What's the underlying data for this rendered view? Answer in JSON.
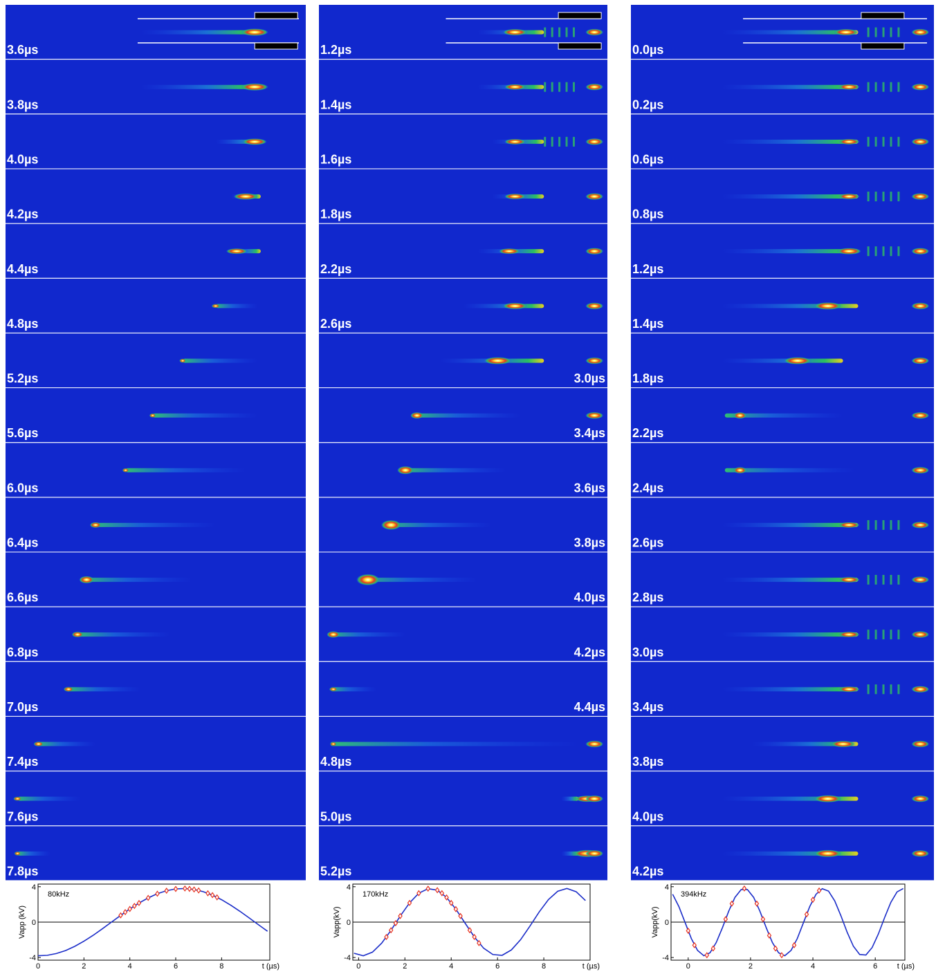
{
  "panels": [
    {
      "frames": [
        "3.6µs",
        "3.8µs",
        "4.0µs",
        "4.2µs",
        "4.4µs",
        "4.8µs",
        "5.2µs",
        "5.6µs",
        "6.0µs",
        "6.4µs",
        "6.6µs",
        "6.8µs",
        "7.0µs",
        "7.4µs",
        "7.6µs",
        "7.8µs"
      ]
    },
    {
      "frames": [
        "1.2µs",
        "1.4µs",
        "1.6µs",
        "1.8µs",
        "2.2µs",
        "2.6µs",
        "3.0µs",
        "3.4µs",
        "3.6µs",
        "3.8µs",
        "4.0µs",
        "4.2µs",
        "4.4µs",
        "4.8µs",
        "5.0µs",
        "5.2µs"
      ]
    },
    {
      "frames": [
        "0.0µs",
        "0.2µs",
        "0.6µs",
        "0.8µs",
        "1.2µs",
        "1.4µs",
        "1.8µs",
        "2.2µs",
        "2.4µs",
        "2.6µs",
        "2.8µs",
        "3.0µs",
        "3.4µs",
        "3.8µs",
        "4.0µs",
        "4.2µs"
      ]
    }
  ],
  "chart_data": [
    {
      "type": "line",
      "annotation": "80kHz",
      "x_label": "t (µs)",
      "y_label": "Vapp (kV)",
      "xlim": [
        0,
        10.1
      ],
      "xticks": [
        0,
        2,
        4,
        6,
        8
      ],
      "ylim": [
        -4.3,
        4.3
      ],
      "yticks": [
        -4,
        0,
        4
      ],
      "series": [
        {
          "color": "#1a2cc8",
          "x": [
            0,
            0.4,
            0.8,
            1.2,
            1.6,
            2.0,
            2.4,
            2.8,
            3.2,
            3.6,
            4.0,
            4.4,
            4.8,
            5.2,
            5.6,
            6.0,
            6.4,
            6.8,
            7.2,
            7.6,
            8.0,
            8.4,
            8.8,
            9.2,
            9.6,
            10.0
          ],
          "values": [
            -3.8,
            -3.75,
            -3.55,
            -3.21,
            -2.74,
            -2.16,
            -1.49,
            -0.76,
            0,
            0.76,
            1.49,
            2.16,
            2.74,
            3.21,
            3.55,
            3.75,
            3.8,
            3.69,
            3.44,
            3.05,
            2.53,
            1.91,
            1.22,
            0.48,
            -0.28,
            -1.03
          ]
        },
        {
          "color": "#e8321e",
          "marker": "diamond",
          "line": false,
          "x": [
            3.6,
            3.8,
            4.0,
            4.2,
            4.4,
            4.8,
            5.2,
            5.6,
            6.0,
            6.4,
            6.6,
            6.8,
            7.0,
            7.4,
            7.6,
            7.8
          ],
          "values": [
            0.76,
            1.13,
            1.49,
            1.83,
            2.16,
            2.74,
            3.21,
            3.55,
            3.75,
            3.8,
            3.76,
            3.69,
            3.58,
            3.26,
            3.05,
            2.8
          ]
        }
      ]
    },
    {
      "type": "line",
      "annotation": "170kHz",
      "x_label": "t (µs)",
      "y_label": "Vapp(kV)",
      "xlim": [
        -0.25,
        10
      ],
      "xticks": [
        0,
        2,
        4,
        6,
        8
      ],
      "ylim": [
        -4.3,
        4.3
      ],
      "yticks": [
        -4,
        0,
        4
      ],
      "series": [
        {
          "color": "#1a2cc8",
          "x": [
            -0.2,
            0.2,
            0.6,
            1.0,
            1.4,
            1.8,
            2.2,
            2.6,
            3.0,
            3.4,
            3.8,
            4.2,
            4.6,
            5.0,
            5.4,
            5.8,
            6.2,
            6.6,
            7.0,
            7.4,
            7.8,
            8.2,
            8.6,
            9.0,
            9.4,
            9.8
          ],
          "values": [
            -3.52,
            -3.8,
            -3.39,
            -2.37,
            -0.92,
            0.69,
            2.17,
            3.27,
            3.78,
            3.61,
            2.79,
            1.47,
            -0.12,
            -1.68,
            -2.95,
            -3.67,
            -3.75,
            -3.14,
            -1.98,
            -0.45,
            1.15,
            2.55,
            3.49,
            3.8,
            3.43,
            2.44
          ]
        },
        {
          "color": "#e8321e",
          "marker": "diamond",
          "line": false,
          "x": [
            1.2,
            1.4,
            1.6,
            1.8,
            2.2,
            2.6,
            3.0,
            3.4,
            3.6,
            3.8,
            4.0,
            4.2,
            4.4,
            4.8,
            5.0,
            5.2
          ],
          "values": [
            -1.68,
            -0.92,
            -0.12,
            0.69,
            2.17,
            3.27,
            3.78,
            3.61,
            3.27,
            2.79,
            2.17,
            1.47,
            0.69,
            -0.92,
            -1.68,
            -2.37
          ]
        }
      ]
    },
    {
      "type": "line",
      "annotation": "394kHz",
      "x_label": "t (µs)",
      "y_label": "Vapp(kV)",
      "xlim": [
        -0.55,
        6.95
      ],
      "xticks": [
        0,
        2,
        4,
        6
      ],
      "ylim": [
        -4.3,
        4.3
      ],
      "yticks": [
        -4,
        0,
        4
      ],
      "series": [
        {
          "color": "#1a2cc8",
          "x": [
            -0.5,
            -0.3,
            -0.1,
            0.1,
            0.3,
            0.5,
            0.7,
            0.9,
            1.1,
            1.3,
            1.5,
            1.7,
            1.9,
            2.1,
            2.3,
            2.5,
            2.7,
            2.9,
            3.1,
            3.3,
            3.5,
            3.7,
            3.9,
            4.1,
            4.3,
            4.5,
            4.7,
            4.9,
            5.1,
            5.3,
            5.5,
            5.7,
            5.9,
            6.1,
            6.3,
            6.5,
            6.7,
            6.9
          ],
          "values": [
            3.15,
            1.76,
            -0.05,
            -1.85,
            -3.2,
            -3.79,
            -3.47,
            -2.31,
            -0.61,
            1.24,
            2.8,
            3.68,
            3.68,
            2.8,
            1.24,
            -0.61,
            -2.31,
            -3.47,
            -3.79,
            -3.2,
            -1.85,
            -0.05,
            1.76,
            3.15,
            3.78,
            3.51,
            2.4,
            0.71,
            -1.15,
            -2.73,
            -3.66,
            -3.71,
            -2.87,
            -1.34,
            0.51,
            2.23,
            3.42,
            3.8
          ]
        },
        {
          "color": "#e8321e",
          "marker": "diamond",
          "line": false,
          "x": [
            0.0,
            0.2,
            0.6,
            0.8,
            1.2,
            1.4,
            1.8,
            2.2,
            2.4,
            2.6,
            2.8,
            3.0,
            3.4,
            3.8,
            4.0,
            4.2
          ],
          "values": [
            -0.98,
            -2.61,
            -3.74,
            -2.98,
            0.33,
            2.09,
            3.8,
            2.09,
            0.33,
            -1.51,
            -2.98,
            -3.74,
            -2.61,
            0.88,
            2.53,
            3.57
          ]
        }
      ]
    }
  ]
}
